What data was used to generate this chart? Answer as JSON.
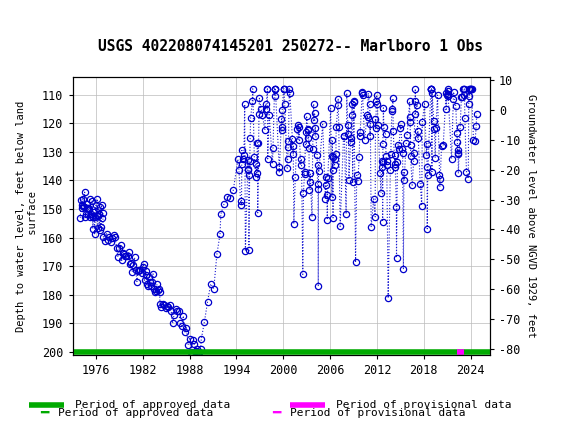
{
  "title": "USGS 402208074145201 250272-- Marlboro 1 Obs",
  "ylabel_left": "Depth to water level, feet below land\n surface",
  "ylabel_right": "Groundwater level above NGVD 1929, feet",
  "ylim_left": [
    201,
    104
  ],
  "ylim_right": [
    -82,
    11
  ],
  "yticks_left": [
    110,
    120,
    130,
    140,
    150,
    160,
    170,
    180,
    190,
    200
  ],
  "yticks_right": [
    10,
    0,
    -10,
    -20,
    -30,
    -40,
    -50,
    -60,
    -70,
    -80
  ],
  "xlim": [
    1973.0,
    2026.5
  ],
  "xticks": [
    1976,
    1982,
    1988,
    1994,
    2000,
    2006,
    2012,
    2018,
    2024
  ],
  "header_color": "#006633",
  "line_color": "#0000cc",
  "marker_color": "#0000cc",
  "approved_color": "#00aa00",
  "provisional_color": "#ff00ff",
  "background_color": "#ffffff",
  "grid_color": "#bbbbbb",
  "prov_start": 2022.3,
  "prov_end": 2023.1
}
